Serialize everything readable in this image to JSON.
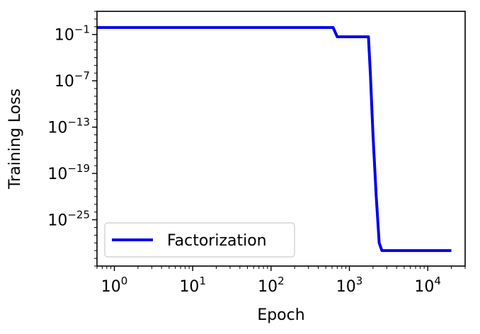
{
  "chart_data": {
    "type": "line",
    "title": "",
    "xlabel": "Epoch",
    "ylabel": "Training Loss",
    "xscale": "log",
    "yscale": "log",
    "xlim": [
      0.6,
      30000
    ],
    "ylim": [
      1e-31,
      100.0
    ],
    "x_ticks": [
      {
        "value": 1,
        "base": "10",
        "exp": "0"
      },
      {
        "value": 10,
        "base": "10",
        "exp": "1"
      },
      {
        "value": 100,
        "base": "10",
        "exp": "2"
      },
      {
        "value": 1000,
        "base": "10",
        "exp": "3"
      },
      {
        "value": 10000,
        "base": "10",
        "exp": "4"
      }
    ],
    "y_ticks": [
      {
        "value": 0.1,
        "base": "10",
        "exp": "−1"
      },
      {
        "value": 1e-07,
        "base": "10",
        "exp": "−7"
      },
      {
        "value": 1e-13,
        "base": "10",
        "exp": "−13"
      },
      {
        "value": 1e-19,
        "base": "10",
        "exp": "−19"
      },
      {
        "value": 1e-25,
        "base": "10",
        "exp": "−25"
      }
    ],
    "grid": false,
    "legend_position": "lower-left",
    "series": [
      {
        "name": "Factorization",
        "color": "#0000ee",
        "x": [
          0.6,
          300,
          620,
          700,
          1000,
          1500,
          1750,
          1850,
          2000,
          2200,
          2400,
          2600,
          5000,
          20000
        ],
        "y": [
          0.8,
          0.8,
          0.8,
          0.05,
          0.05,
          0.05,
          0.05,
          1e-06,
          1e-14,
          1e-22,
          1e-28,
          1e-29,
          1e-29,
          1e-29
        ]
      }
    ]
  }
}
